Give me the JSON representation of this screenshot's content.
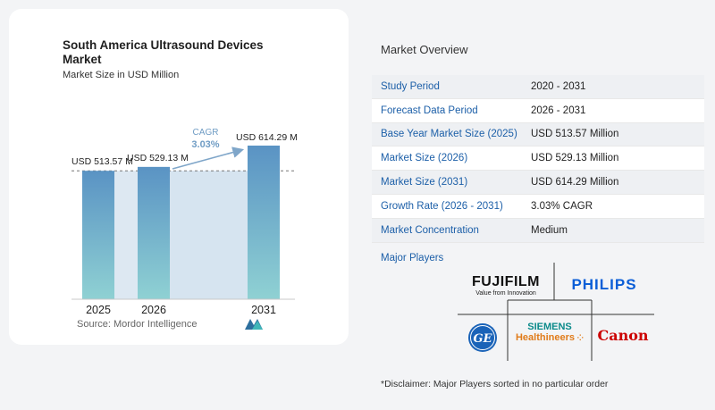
{
  "chart_data": {
    "type": "bar",
    "title": "South America Ultrasound Devices Market",
    "subtitle": "Market Size in USD Million",
    "categories": [
      "2025",
      "2026",
      "2031"
    ],
    "values": [
      513.57,
      529.13,
      614.29
    ],
    "value_labels": [
      "USD 513.57 M",
      "USD 529.13 M",
      "USD 614.29 M"
    ],
    "cagr_label": "CAGR",
    "cagr_value": "3.03%",
    "colors": {
      "bar_top": "#5a93c4",
      "bar_bottom": "#8fd1d3",
      "band": "#dde8f2",
      "cagr": "#6f9cc4",
      "arrow": "#7fa6c9"
    }
  },
  "source": "Source:",
  "source_name": "Mordor Intelligence",
  "overview": {
    "heading": "Market Overview",
    "rows": [
      {
        "label": "Study Period",
        "value": "2020 - 2031"
      },
      {
        "label": "Forecast Data Period",
        "value": "2026 - 2031"
      },
      {
        "label": "Base Year Market Size (2025)",
        "value": "USD 513.57 Million"
      },
      {
        "label": "Market Size (2026)",
        "value": "USD 529.13 Million"
      },
      {
        "label": "Market Size (2031)",
        "value": "USD 614.29 Million"
      },
      {
        "label": "Growth Rate (2026 - 2031)",
        "value": "3.03% CAGR"
      },
      {
        "label": "Market Concentration",
        "value": "Medium"
      }
    ],
    "players_heading": "Major Players",
    "players": {
      "fujifilm": "FUJIFILM",
      "fujifilm_tagline": "Value from Innovation",
      "philips": "PHILIPS",
      "ge": "GE",
      "siemens_top": "SIEMENS",
      "siemens_bottom": "Healthineers",
      "canon": "Canon"
    },
    "disclaimer": "*Disclaimer: Major Players sorted in no particular order"
  }
}
